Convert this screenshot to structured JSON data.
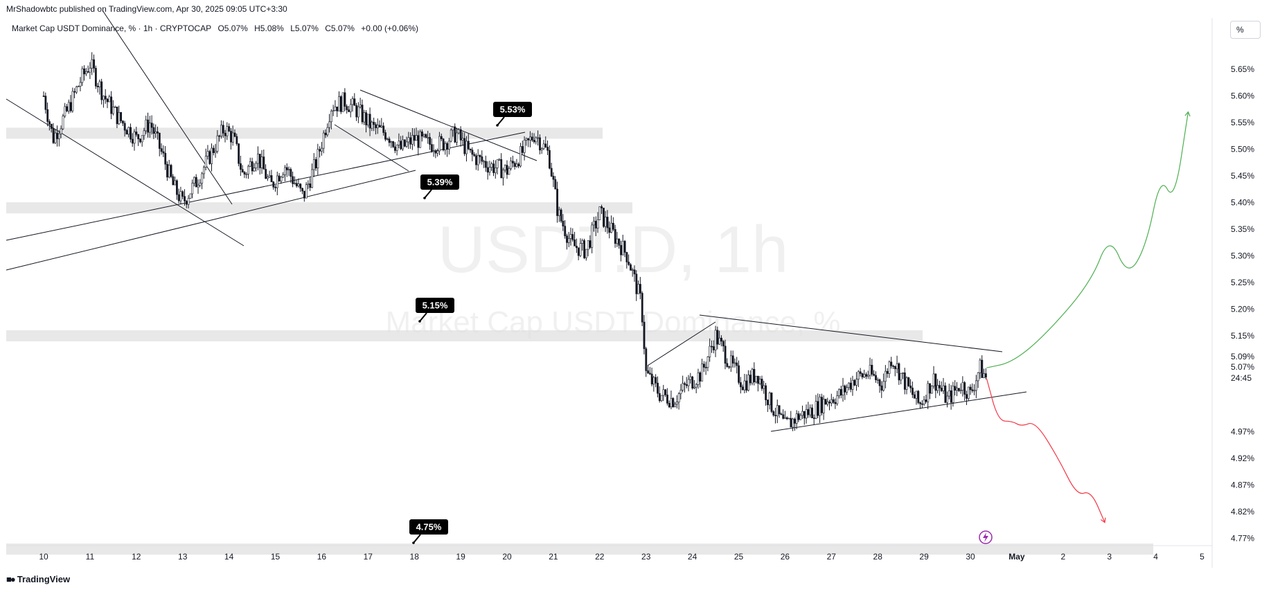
{
  "header": {
    "published": "MrShadowbtc published on TradingView.com, Apr 30, 2025 09:05 UTC+3:30"
  },
  "legend": {
    "symbol": "Market Cap USDT Dominance, % · 1h · CRYPTOCAP",
    "open": "O5.07%",
    "high": "H5.08%",
    "low": "L5.07%",
    "close": "C5.07%",
    "change": "+0.00 (+0.06%)"
  },
  "watermark": {
    "title": "USDT.D, 1h",
    "subtitle": "Market Cap USDT Dominance, %"
  },
  "scale_button": "%",
  "footer": {
    "brand": "TradingView",
    "logo_icon": "tradingview-logo-icon"
  },
  "price_tags": {
    "current": "5.07%",
    "countdown": "24:45",
    "prev_level": "5.09%"
  },
  "colors": {
    "candle": "#131722",
    "zone": "#e0e0e0",
    "bullish_projection": "#4caf50",
    "bearish_projection": "#f23645",
    "label_bg": "#000000",
    "event_icon": "#9c27b0"
  },
  "chart_data": {
    "type": "candlestick",
    "title": "Market Cap USDT Dominance, %",
    "timeframe": "1h",
    "ylim": [
      4.74,
      5.7
    ],
    "y_ticks": [
      "5.65%",
      "5.60%",
      "5.55%",
      "5.50%",
      "5.45%",
      "5.40%",
      "5.35%",
      "5.30%",
      "5.25%",
      "5.20%",
      "5.15%",
      "4.97%",
      "4.92%",
      "4.87%",
      "4.82%",
      "4.77%"
    ],
    "y_tick_values": [
      5.65,
      5.6,
      5.55,
      5.5,
      5.45,
      5.4,
      5.35,
      5.3,
      5.25,
      5.2,
      5.15,
      4.97,
      4.92,
      4.87,
      4.82,
      4.77
    ],
    "x_ticks": [
      "10",
      "11",
      "12",
      "13",
      "14",
      "15",
      "16",
      "17",
      "18",
      "19",
      "20",
      "21",
      "22",
      "23",
      "24",
      "25",
      "26",
      "27",
      "28",
      "29",
      "30",
      "May",
      "2",
      "3",
      "4",
      "5"
    ],
    "close_path": [
      [
        10.0,
        5.6
      ],
      [
        10.2,
        5.52
      ],
      [
        10.5,
        5.57
      ],
      [
        10.8,
        5.63
      ],
      [
        11.0,
        5.66
      ],
      [
        11.3,
        5.6
      ],
      [
        11.6,
        5.56
      ],
      [
        12.0,
        5.52
      ],
      [
        12.3,
        5.55
      ],
      [
        12.6,
        5.48
      ],
      [
        12.8,
        5.43
      ],
      [
        13.0,
        5.4
      ],
      [
        13.3,
        5.44
      ],
      [
        13.6,
        5.49
      ],
      [
        13.9,
        5.54
      ],
      [
        14.1,
        5.52
      ],
      [
        14.3,
        5.45
      ],
      [
        14.6,
        5.49
      ],
      [
        14.9,
        5.43
      ],
      [
        15.2,
        5.47
      ],
      [
        15.6,
        5.41
      ],
      [
        15.9,
        5.48
      ],
      [
        16.2,
        5.58
      ],
      [
        16.5,
        5.59
      ],
      [
        16.8,
        5.57
      ],
      [
        17.1,
        5.54
      ],
      [
        17.4,
        5.53
      ],
      [
        17.7,
        5.5
      ],
      [
        18.0,
        5.52
      ],
      [
        18.3,
        5.51
      ],
      [
        18.6,
        5.51
      ],
      [
        18.9,
        5.53
      ],
      [
        19.2,
        5.49
      ],
      [
        19.6,
        5.47
      ],
      [
        20.0,
        5.46
      ],
      [
        20.3,
        5.49
      ],
      [
        20.6,
        5.53
      ],
      [
        20.9,
        5.49
      ],
      [
        21.1,
        5.38
      ],
      [
        21.4,
        5.32
      ],
      [
        21.7,
        5.31
      ],
      [
        22.0,
        5.38
      ],
      [
        22.3,
        5.34
      ],
      [
        22.6,
        5.3
      ],
      [
        22.9,
        5.21
      ],
      [
        23.0,
        5.08
      ],
      [
        23.3,
        5.04
      ],
      [
        23.6,
        5.03
      ],
      [
        23.9,
        5.06
      ],
      [
        24.2,
        5.08
      ],
      [
        24.5,
        5.15
      ],
      [
        24.8,
        5.1
      ],
      [
        25.1,
        5.06
      ],
      [
        25.4,
        5.08
      ],
      [
        25.7,
        5.02
      ],
      [
        26.0,
        4.98
      ],
      [
        26.3,
        5.0
      ],
      [
        26.6,
        5.01
      ],
      [
        26.9,
        5.03
      ],
      [
        27.2,
        5.04
      ],
      [
        27.5,
        5.07
      ],
      [
        27.8,
        5.08
      ],
      [
        28.1,
        5.06
      ],
      [
        28.3,
        5.11
      ],
      [
        28.6,
        5.06
      ],
      [
        28.9,
        5.02
      ],
      [
        29.2,
        5.07
      ],
      [
        29.5,
        5.03
      ],
      [
        29.8,
        5.06
      ],
      [
        30.0,
        5.04
      ],
      [
        30.2,
        5.09
      ],
      [
        30.35,
        5.07
      ]
    ],
    "horizontal_zones": [
      {
        "level": 5.53,
        "label": "5.53%"
      },
      {
        "level": 5.39,
        "label": "5.39%"
      },
      {
        "level": 5.15,
        "label": "5.15%"
      },
      {
        "level": 4.75,
        "label": "4.75%"
      }
    ],
    "projections": [
      {
        "name": "bullish",
        "points": [
          [
            30.35,
            5.09
          ],
          [
            30.9,
            5.1
          ],
          [
            31.6,
            5.15
          ],
          [
            32.6,
            5.25
          ],
          [
            33.0,
            5.34
          ],
          [
            33.4,
            5.26
          ],
          [
            33.8,
            5.32
          ],
          [
            34.1,
            5.45
          ],
          [
            34.4,
            5.4
          ],
          [
            34.7,
            5.57
          ]
        ]
      },
      {
        "name": "bearish",
        "points": [
          [
            30.35,
            5.07
          ],
          [
            30.6,
            4.99
          ],
          [
            30.9,
            4.99
          ],
          [
            31.1,
            4.98
          ],
          [
            31.4,
            4.99
          ],
          [
            31.9,
            4.92
          ],
          [
            32.3,
            4.85
          ],
          [
            32.6,
            4.86
          ],
          [
            32.9,
            4.8
          ]
        ]
      }
    ]
  }
}
